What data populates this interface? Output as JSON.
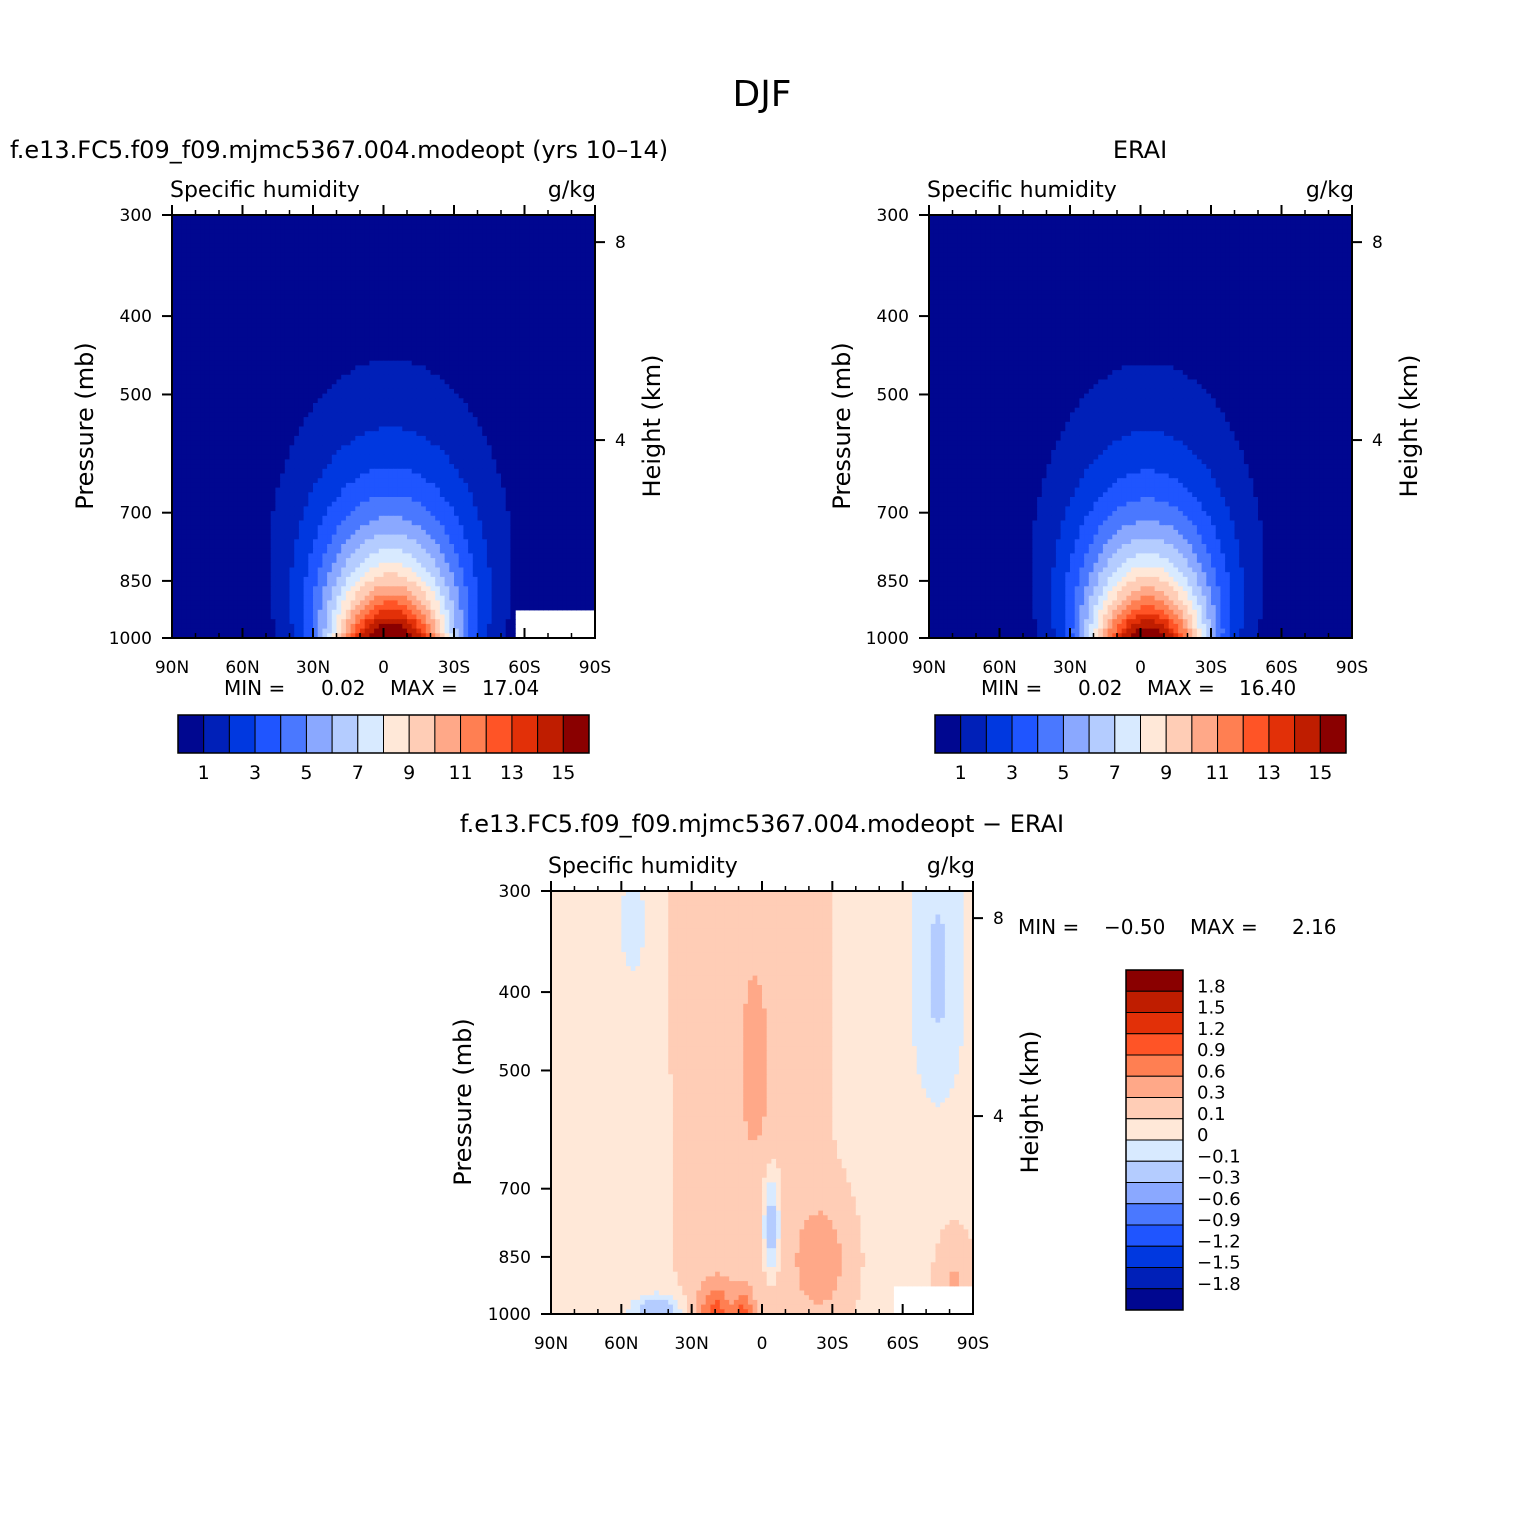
{
  "page_title": "DJF",
  "chart_data": [
    {
      "type": "contour",
      "title": "f.e13.FC5.f09_f09.mjmc5367.004.modeopt (yrs 10–14)",
      "subtitle_left": "Specific humidity",
      "subtitle_right": "g/kg",
      "ylabel": "Pressure (mb)",
      "ylabel_right": "Height (km)",
      "x_ticklabels": [
        "90N",
        "60N",
        "30N",
        "0",
        "30S",
        "60S",
        "90S"
      ],
      "y_ticklabels": [
        "300",
        "400",
        "500",
        "700",
        "850",
        "1000"
      ],
      "y_right_ticklabels": [
        "8",
        "4"
      ],
      "ylim": [
        1000,
        300
      ],
      "stats": {
        "min_label": "MIN =",
        "min": "0.02",
        "max_label": "MAX =",
        "max": "17.04"
      },
      "colorbar_ticklabels": [
        "1",
        "3",
        "5",
        "7",
        "9",
        "11",
        "13",
        "15"
      ],
      "peak": 17.04,
      "center_lat": -3,
      "lat_spread_surface": 38,
      "gap_lat_start": -56,
      "gap_pressure_top": 925
    },
    {
      "type": "contour",
      "title": "ERAI",
      "subtitle_left": "Specific humidity",
      "subtitle_right": "g/kg",
      "ylabel": "Pressure (mb)",
      "ylabel_right": "Height (km)",
      "x_ticklabels": [
        "90N",
        "60N",
        "30N",
        "0",
        "30S",
        "60S",
        "90S"
      ],
      "y_ticklabels": [
        "300",
        "400",
        "500",
        "700",
        "850",
        "1000"
      ],
      "y_right_ticklabels": [
        "8",
        "4"
      ],
      "ylim": [
        1000,
        300
      ],
      "stats": {
        "min_label": "MIN =",
        "min": "0.02",
        "max_label": "MAX =",
        "max": "16.40"
      },
      "colorbar_ticklabels": [
        "1",
        "3",
        "5",
        "7",
        "9",
        "11",
        "13",
        "15"
      ],
      "peak": 16.4,
      "center_lat": -3,
      "lat_spread_surface": 36
    },
    {
      "type": "contour",
      "title": "f.e13.FC5.f09_f09.mjmc5367.004.modeopt − ERAI",
      "subtitle_left": "Specific humidity",
      "subtitle_right": "g/kg",
      "ylabel": "Pressure (mb)",
      "ylabel_right": "Height (km)",
      "x_ticklabels": [
        "90N",
        "60N",
        "30N",
        "0",
        "30S",
        "60S",
        "90S"
      ],
      "y_ticklabels": [
        "300",
        "400",
        "500",
        "700",
        "850",
        "1000"
      ],
      "y_right_ticklabels": [
        "8",
        "4"
      ],
      "ylim": [
        1000,
        300
      ],
      "stats": {
        "min_label": "MIN =",
        "min": "−0.50",
        "max_label": "MAX =",
        "max": "2.16"
      },
      "colorbar_ticklabels": [
        "1.8",
        "1.5",
        "1.2",
        "0.9",
        "0.6",
        "0.3",
        "0.1",
        "0",
        "−0.1",
        "−0.3",
        "−0.6",
        "−0.9",
        "−1.2",
        "−1.5",
        "−1.8"
      ]
    }
  ],
  "colors": {
    "full_levels": [
      "#000790",
      "#0020B8",
      "#0038E0",
      "#1F55FF",
      "#4A78FF",
      "#8AA8FF",
      "#B4CCFF",
      "#D8EAFF",
      "#FFE8D8",
      "#FFCDB6",
      "#FFA888",
      "#FF7F52",
      "#FF5426",
      "#E23008",
      "#BF1D00",
      "#8A0000"
    ],
    "diff_levels": [
      "#000790",
      "#0020B8",
      "#0038E0",
      "#1F55FF",
      "#4A78FF",
      "#8AA8FF",
      "#B4CCFF",
      "#D8EAFF",
      "#FFE8D8",
      "#FFCDB6",
      "#FFA888",
      "#FF7F52",
      "#FF5426",
      "#E23008",
      "#BF1D00",
      "#8A0000"
    ]
  }
}
